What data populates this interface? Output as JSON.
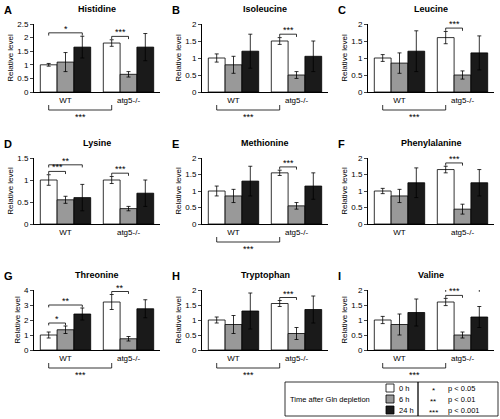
{
  "chart_data": [
    {
      "type": "bar",
      "panel": "A",
      "title": "Histidine",
      "y_label": "Relative level",
      "categories": [
        "WT",
        "atg5-/-"
      ],
      "series": [
        {
          "name": "0 h",
          "color": "#ffffff",
          "values": [
            1.0,
            1.8
          ],
          "errors": [
            0.05,
            0.12
          ]
        },
        {
          "name": "6 h",
          "color": "#999999",
          "values": [
            1.1,
            0.65
          ],
          "errors": [
            0.35,
            0.1
          ]
        },
        {
          "name": "24 h",
          "color": "#1a1a1a",
          "values": [
            1.65,
            1.65
          ],
          "errors": [
            0.4,
            0.5
          ]
        }
      ],
      "ylim": [
        0,
        2.5
      ],
      "yticks": [
        0,
        0.5,
        1,
        1.5,
        2,
        2.5
      ],
      "grid": false,
      "brackets": [
        {
          "group": 0,
          "from": 0,
          "to": 2,
          "label": "*"
        },
        {
          "group": 1,
          "from": 0,
          "to": 1,
          "label": "***"
        }
      ],
      "group_brackets": [
        {
          "from": [
            0,
            0
          ],
          "to": [
            1,
            0
          ],
          "label": "***"
        }
      ]
    },
    {
      "type": "bar",
      "panel": "B",
      "title": "Isoleucine",
      "y_label": "Relative level",
      "categories": [
        "WT",
        "atg5-/-"
      ],
      "series": [
        {
          "name": "0 h",
          "color": "#ffffff",
          "values": [
            1.0,
            1.5
          ],
          "errors": [
            0.12,
            0.1
          ]
        },
        {
          "name": "6 h",
          "color": "#999999",
          "values": [
            0.8,
            0.5
          ],
          "errors": [
            0.25,
            0.1
          ]
        },
        {
          "name": "24 h",
          "color": "#1a1a1a",
          "values": [
            1.2,
            1.05
          ],
          "errors": [
            0.5,
            0.45
          ]
        }
      ],
      "ylim": [
        0,
        2
      ],
      "yticks": [
        0,
        0.5,
        1,
        1.5,
        2
      ],
      "grid": false,
      "brackets": [
        {
          "group": 1,
          "from": 0,
          "to": 1,
          "label": "***"
        }
      ],
      "group_brackets": [
        {
          "from": [
            0,
            0
          ],
          "to": [
            1,
            0
          ],
          "label": "***"
        }
      ]
    },
    {
      "type": "bar",
      "panel": "C",
      "title": "Leucine",
      "y_label": "Relative level",
      "categories": [
        "WT",
        "atg5-/-"
      ],
      "series": [
        {
          "name": "0 h",
          "color": "#ffffff",
          "values": [
            1.0,
            1.6
          ],
          "errors": [
            0.1,
            0.18
          ]
        },
        {
          "name": "6 h",
          "color": "#999999",
          "values": [
            0.85,
            0.5
          ],
          "errors": [
            0.3,
            0.12
          ]
        },
        {
          "name": "24 h",
          "color": "#1a1a1a",
          "values": [
            1.2,
            1.15
          ],
          "errors": [
            0.6,
            0.5
          ]
        }
      ],
      "ylim": [
        0,
        2
      ],
      "yticks": [
        0,
        0.5,
        1,
        1.5,
        2
      ],
      "grid": false,
      "brackets": [
        {
          "group": 1,
          "from": 0,
          "to": 1,
          "label": "***"
        }
      ],
      "group_brackets": [
        {
          "from": [
            0,
            0
          ],
          "to": [
            1,
            0
          ],
          "label": "***"
        }
      ]
    },
    {
      "type": "bar",
      "panel": "D",
      "title": "Lysine",
      "y_label": "Relative level",
      "categories": [
        "WT",
        "atg5-/-"
      ],
      "series": [
        {
          "name": "0 h",
          "color": "#ffffff",
          "values": [
            1.0,
            1.0
          ],
          "errors": [
            0.12,
            0.08
          ]
        },
        {
          "name": "6 h",
          "color": "#999999",
          "values": [
            0.55,
            0.35
          ],
          "errors": [
            0.08,
            0.05
          ]
        },
        {
          "name": "24 h",
          "color": "#1a1a1a",
          "values": [
            0.6,
            0.7
          ],
          "errors": [
            0.3,
            0.3
          ]
        }
      ],
      "ylim": [
        0,
        1.5
      ],
      "yticks": [
        0,
        0.5,
        1,
        1.5
      ],
      "grid": false,
      "brackets": [
        {
          "group": 0,
          "from": 0,
          "to": 1,
          "label": "***"
        },
        {
          "group": 0,
          "from": 0,
          "to": 2,
          "label": "**"
        },
        {
          "group": 1,
          "from": 0,
          "to": 1,
          "label": "***"
        }
      ],
      "group_brackets": []
    },
    {
      "type": "bar",
      "panel": "E",
      "title": "Methionine",
      "y_label": "Relative level",
      "categories": [
        "WT",
        "atg5-/-"
      ],
      "series": [
        {
          "name": "0 h",
          "color": "#ffffff",
          "values": [
            1.0,
            1.55
          ],
          "errors": [
            0.15,
            0.08
          ]
        },
        {
          "name": "6 h",
          "color": "#999999",
          "values": [
            0.85,
            0.55
          ],
          "errors": [
            0.2,
            0.1
          ]
        },
        {
          "name": "24 h",
          "color": "#1a1a1a",
          "values": [
            1.3,
            1.15
          ],
          "errors": [
            0.45,
            0.4
          ]
        }
      ],
      "ylim": [
        0,
        2
      ],
      "yticks": [
        0,
        0.5,
        1,
        1.5,
        2
      ],
      "grid": false,
      "brackets": [
        {
          "group": 1,
          "from": 0,
          "to": 1,
          "label": "***"
        }
      ],
      "group_brackets": [
        {
          "from": [
            0,
            0
          ],
          "to": [
            1,
            0
          ],
          "label": "***"
        }
      ]
    },
    {
      "type": "bar",
      "panel": "F",
      "title": "Phenylalanine",
      "y_label": "Relative level",
      "categories": [
        "WT",
        "atg5-/-"
      ],
      "series": [
        {
          "name": "0 h",
          "color": "#ffffff",
          "values": [
            1.0,
            1.65
          ],
          "errors": [
            0.08,
            0.1
          ]
        },
        {
          "name": "6 h",
          "color": "#999999",
          "values": [
            0.85,
            0.45
          ],
          "errors": [
            0.2,
            0.15
          ]
        },
        {
          "name": "24 h",
          "color": "#1a1a1a",
          "values": [
            1.25,
            1.25
          ],
          "errors": [
            0.45,
            0.4
          ]
        }
      ],
      "ylim": [
        0,
        2
      ],
      "yticks": [
        0,
        0.5,
        1,
        1.5,
        2
      ],
      "grid": false,
      "brackets": [
        {
          "group": 1,
          "from": 0,
          "to": 1,
          "label": "***"
        }
      ],
      "group_brackets": []
    },
    {
      "type": "bar",
      "panel": "G",
      "title": "Threonine",
      "y_label": "Relative level",
      "categories": [
        "WT",
        "atg5-/-"
      ],
      "series": [
        {
          "name": "0 h",
          "color": "#ffffff",
          "values": [
            1.0,
            3.2
          ],
          "errors": [
            0.2,
            0.5
          ]
        },
        {
          "name": "6 h",
          "color": "#999999",
          "values": [
            1.35,
            0.75
          ],
          "errors": [
            0.25,
            0.15
          ]
        },
        {
          "name": "24 h",
          "color": "#1a1a1a",
          "values": [
            2.4,
            2.75
          ],
          "errors": [
            0.4,
            0.6
          ]
        }
      ],
      "ylim": [
        0,
        4
      ],
      "yticks": [
        0,
        1,
        2,
        3,
        4
      ],
      "grid": false,
      "brackets": [
        {
          "group": 0,
          "from": 0,
          "to": 1,
          "label": "*"
        },
        {
          "group": 0,
          "from": 0,
          "to": 2,
          "label": "**"
        },
        {
          "group": 1,
          "from": 0,
          "to": 1,
          "label": "**"
        }
      ],
      "group_brackets": [
        {
          "from": [
            0,
            0
          ],
          "to": [
            1,
            0
          ],
          "label": "***"
        }
      ]
    },
    {
      "type": "bar",
      "panel": "H",
      "title": "Tryptophan",
      "y_label": "Relative level",
      "categories": [
        "WT",
        "atg5-/-"
      ],
      "series": [
        {
          "name": "0 h",
          "color": "#ffffff",
          "values": [
            1.0,
            1.55
          ],
          "errors": [
            0.1,
            0.1
          ]
        },
        {
          "name": "6 h",
          "color": "#999999",
          "values": [
            0.85,
            0.55
          ],
          "errors": [
            0.3,
            0.2
          ]
        },
        {
          "name": "24 h",
          "color": "#1a1a1a",
          "values": [
            1.3,
            1.35
          ],
          "errors": [
            0.6,
            0.45
          ]
        }
      ],
      "ylim": [
        0,
        2
      ],
      "yticks": [
        0,
        0.5,
        1,
        1.5,
        2
      ],
      "grid": false,
      "brackets": [
        {
          "group": 1,
          "from": 0,
          "to": 1,
          "label": "***"
        }
      ],
      "group_brackets": [
        {
          "from": [
            0,
            0
          ],
          "to": [
            1,
            0
          ],
          "label": "***"
        }
      ]
    },
    {
      "type": "bar",
      "panel": "I",
      "title": "Valine",
      "y_label": "Relative level",
      "categories": [
        "WT",
        "atg5-/-"
      ],
      "series": [
        {
          "name": "0 h",
          "color": "#ffffff",
          "values": [
            1.0,
            1.6
          ],
          "errors": [
            0.12,
            0.12
          ]
        },
        {
          "name": "6 h",
          "color": "#999999",
          "values": [
            0.85,
            0.5
          ],
          "errors": [
            0.35,
            0.1
          ]
        },
        {
          "name": "24 h",
          "color": "#1a1a1a",
          "values": [
            1.25,
            1.1
          ],
          "errors": [
            0.45,
            0.35
          ]
        }
      ],
      "ylim": [
        0,
        2
      ],
      "yticks": [
        0,
        0.5,
        1,
        1.5,
        2
      ],
      "grid": false,
      "brackets": [
        {
          "group": 1,
          "from": 0,
          "to": 1,
          "label": "***"
        },
        {
          "group": 1,
          "from": 0,
          "to": 2,
          "label": "*"
        }
      ],
      "group_brackets": [
        {
          "from": [
            0,
            0
          ],
          "to": [
            1,
            0
          ],
          "label": "***"
        }
      ]
    }
  ],
  "legend_title": "Time after Gln depletion",
  "significance": [
    {
      "mark": "*",
      "text": "p < 0.05"
    },
    {
      "mark": "**",
      "text": "p < 0.01"
    },
    {
      "mark": "***",
      "text": "p < 0.001"
    }
  ]
}
